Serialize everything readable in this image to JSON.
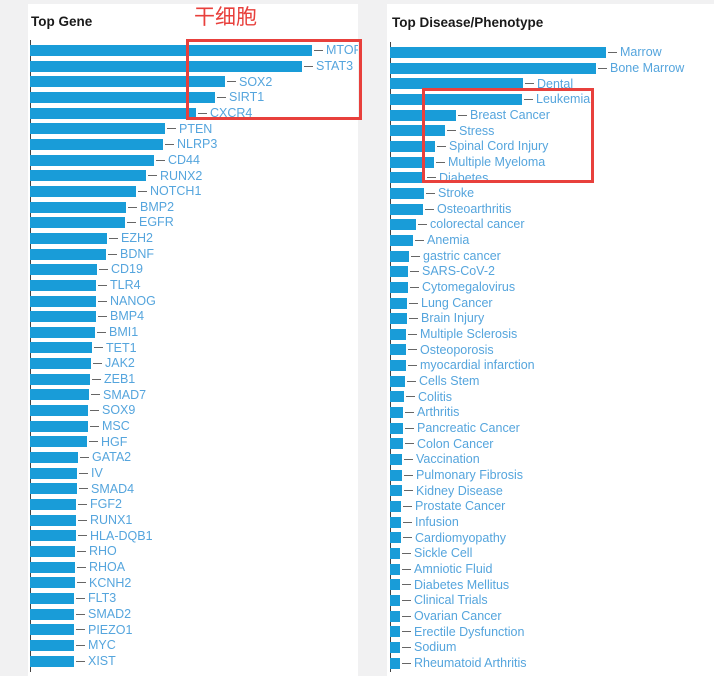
{
  "page": {
    "background": "#f1f1f2",
    "card_background": "#ffffff"
  },
  "colors": {
    "bar": "#199cd8",
    "label": "#55a5dd",
    "tick": "#666666",
    "axis": "#444444",
    "title": "#1a1a1a",
    "highlight": "#e8403c"
  },
  "annotation": {
    "text": "干细胞",
    "color": "#e8403c"
  },
  "highlight_boxes": [
    {
      "chart": "Top Gene",
      "enclosed_labels": [
        "MTOR",
        "STAT3",
        "SOX2",
        "SIRT1",
        "CXCR4"
      ]
    },
    {
      "chart": "Top Disease/Phenotype",
      "enclosed_labels": [
        "Leukemia",
        "Breast Cancer",
        "Stress",
        "Spinal Cord Injury",
        "Multiple Myeloma",
        "Diabetes"
      ]
    }
  ],
  "chart_data": [
    {
      "type": "bar",
      "orientation": "horizontal",
      "title": "Top Gene",
      "legend": "none",
      "grid": "off",
      "axis_tick_labels": "none (labels at bar ends only)",
      "units": "relative bar length in px; no numeric axis shown",
      "categories": [
        "MTOR",
        "STAT3",
        "SOX2",
        "SIRT1",
        "CXCR4",
        "PTEN",
        "NLRP3",
        "CD44",
        "RUNX2",
        "NOTCH1",
        "BMP2",
        "EGFR",
        "EZH2",
        "BDNF",
        "CD19",
        "TLR4",
        "NANOG",
        "BMP4",
        "BMI1",
        "TET1",
        "JAK2",
        "ZEB1",
        "SMAD7",
        "SOX9",
        "MSC",
        "HGF",
        "GATA2",
        "IV",
        "SMAD4",
        "FGF2",
        "RUNX1",
        "HLA-DQB1",
        "RHO",
        "RHOA",
        "KCNH2",
        "FLT3",
        "SMAD2",
        "PIEZO1",
        "MYC",
        "XIST"
      ],
      "values": [
        282,
        272,
        195,
        185,
        166,
        135,
        133,
        124,
        116,
        106,
        96,
        95,
        77,
        76,
        67,
        66,
        66,
        66,
        65,
        62,
        61,
        60,
        59,
        58,
        58,
        57,
        48,
        47,
        47,
        46,
        46,
        46,
        45,
        45,
        45,
        44,
        44,
        44,
        44,
        44
      ]
    },
    {
      "type": "bar",
      "orientation": "horizontal",
      "title": "Top Disease/Phenotype",
      "legend": "none",
      "grid": "off",
      "axis_tick_labels": "none (labels at bar ends only)",
      "units": "relative bar length in px; no numeric axis shown",
      "categories": [
        "Marrow",
        "Bone Marrow",
        "Dental",
        "Leukemia",
        "Breast Cancer",
        "Stress",
        "Spinal Cord Injury",
        "Multiple Myeloma",
        "Diabetes",
        "Stroke",
        "Osteoarthritis",
        "colorectal cancer",
        "Anemia",
        "gastric cancer",
        "SARS-CoV-2",
        "Cytomegalovirus",
        "Lung Cancer",
        "Brain Injury",
        "Multiple Sclerosis",
        "Osteoporosis",
        "myocardial infarction",
        "Cells Stem",
        "Colitis",
        "Arthritis",
        "Pancreatic Cancer",
        "Colon Cancer",
        "Vaccination",
        "Pulmonary Fibrosis",
        "Kidney Disease",
        "Prostate Cancer",
        "Infusion",
        "Cardiomyopathy",
        "Sickle Cell",
        "Amniotic Fluid",
        "Diabetes Mellitus",
        "Clinical Trials",
        "Ovarian Cancer",
        "Erectile Dysfunction",
        "Sodium",
        "Rheumatoid Arthritis"
      ],
      "values": [
        216,
        206,
        133,
        132,
        66,
        55,
        45,
        44,
        35,
        34,
        33,
        26,
        23,
        19,
        18,
        18,
        17,
        17,
        16,
        16,
        16,
        15,
        14,
        13,
        13,
        13,
        12,
        12,
        12,
        11,
        11,
        11,
        10,
        10,
        10,
        10,
        10,
        10,
        10,
        10
      ]
    }
  ]
}
